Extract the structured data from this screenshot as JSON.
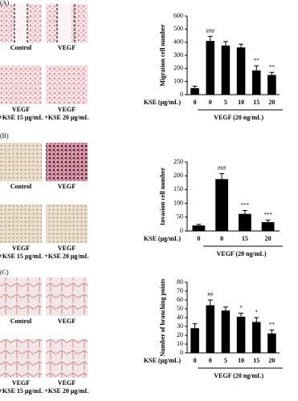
{
  "panels": [
    {
      "label": "(A)",
      "captions": [
        [
          "Control"
        ],
        [
          "VEGF"
        ],
        [
          "VEGF",
          "+KSE 15 μg/mL"
        ],
        [
          "VEGF",
          "+KSE 20 μg/mL"
        ]
      ]
    },
    {
      "label": "(B)",
      "captions": [
        [
          "Control"
        ],
        [
          "VEGF"
        ],
        [
          "VEGF",
          "+KSE 15 μg/mL"
        ],
        [
          "VEGF",
          "+KSE 20 μg/mL"
        ]
      ]
    },
    {
      "label": "(C)",
      "captions": [
        [
          "Control"
        ],
        [
          "VEGF"
        ],
        [
          "VEGF",
          "+KSE 15 μg/mL"
        ],
        [
          "VEGF",
          "+KSE 20 μg/mL"
        ]
      ]
    }
  ],
  "chart_data": [
    {
      "type": "bar",
      "y_label": "Migration cell number",
      "x_label": "KSE (μg/mL)",
      "group_label": "VEGF (20 ng/mL)",
      "categories": [
        "0",
        "0",
        "5",
        "10",
        "15",
        "20"
      ],
      "values": [
        50,
        410,
        375,
        360,
        185,
        150
      ],
      "errors": [
        15,
        35,
        30,
        25,
        35,
        20
      ],
      "annotations": [
        null,
        "###",
        null,
        null,
        "**",
        "**"
      ],
      "color": "#000000",
      "ylim": [
        0,
        600
      ],
      "yticks": [
        0,
        100,
        200,
        300,
        400,
        500,
        600
      ]
    },
    {
      "type": "bar",
      "y_label": "Invasion cell number",
      "x_label": "KSE (μg/mL)",
      "group_label": "VEGF (20 ng/mL)",
      "categories": [
        "0",
        "0",
        "15",
        "20"
      ],
      "values": [
        20,
        188,
        62,
        32
      ],
      "errors": [
        4,
        20,
        12,
        8
      ],
      "annotations": [
        null,
        "###",
        "***",
        "***"
      ],
      "color": "#000000",
      "ylim": [
        0,
        250
      ],
      "yticks": [
        0,
        50,
        100,
        150,
        200,
        250
      ]
    },
    {
      "type": "bar",
      "y_label": "Number of branching points",
      "x_label": "KSE (μg/mL)",
      "group_label": "VEGF (20 ng/mL)",
      "categories": [
        "0",
        "0",
        "5",
        "10",
        "15",
        "20"
      ],
      "values": [
        28,
        54,
        48,
        41,
        35,
        22
      ],
      "errors": [
        5,
        6,
        4,
        4,
        5,
        4
      ],
      "annotations": [
        null,
        "##",
        null,
        "*",
        "*",
        "**"
      ],
      "color": "#000000",
      "ylim": [
        0,
        80
      ],
      "yticks": [
        0,
        10,
        20,
        30,
        40,
        50,
        60,
        70,
        80
      ]
    }
  ]
}
